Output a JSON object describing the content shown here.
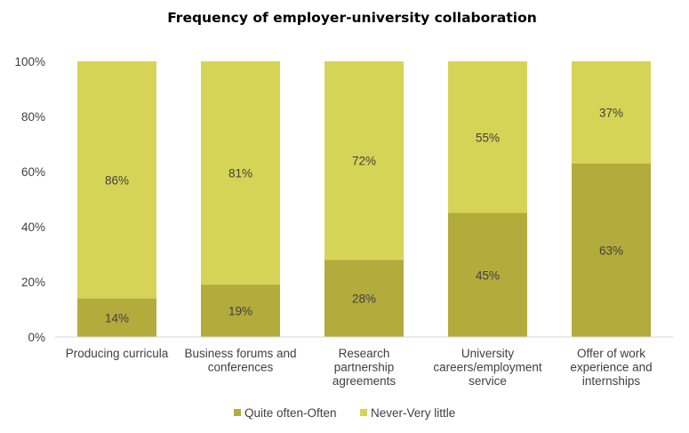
{
  "chart_data": {
    "type": "bar",
    "stacked": true,
    "title": "Frequency of employer-university collaboration",
    "categories": [
      [
        "Producing curricula"
      ],
      [
        "Business forums and",
        "conferences"
      ],
      [
        "Research",
        "partnership",
        "agreements"
      ],
      [
        "University",
        "careers/employment",
        "service"
      ],
      [
        "Offer of work",
        "experience and",
        "internships"
      ]
    ],
    "series": [
      {
        "name": "Quite often-Often",
        "color": "#b3ab3c",
        "values": [
          14,
          19,
          28,
          45,
          63
        ],
        "labels": [
          "14%",
          "19%",
          "28%",
          "45%",
          "63%"
        ]
      },
      {
        "name": "Never-Very little",
        "color": "#d6d456",
        "values": [
          86,
          81,
          72,
          55,
          37
        ],
        "labels": [
          "86%",
          "81%",
          "72%",
          "55%",
          "37%"
        ]
      }
    ],
    "ylim": [
      0,
      100
    ],
    "yticks": [
      "0%",
      "20%",
      "40%",
      "60%",
      "80%",
      "100%"
    ],
    "grid": false,
    "legend_position": "bottom"
  }
}
